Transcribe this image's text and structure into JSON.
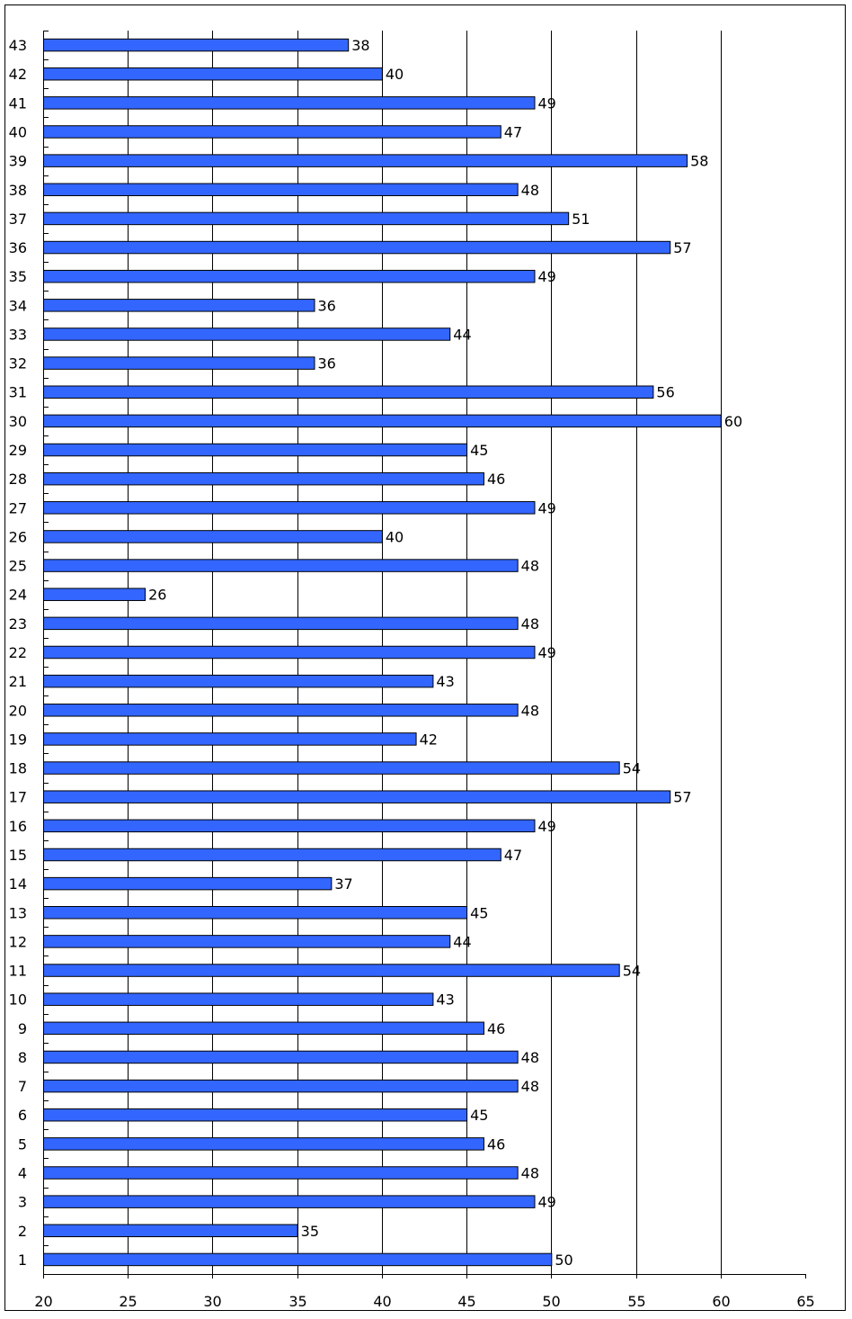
{
  "chart_data": {
    "type": "bar",
    "orientation": "horizontal",
    "title": "",
    "xlabel": "",
    "ylabel": "",
    "xlim": [
      20,
      65
    ],
    "x_ticks": [
      20,
      25,
      30,
      35,
      40,
      45,
      50,
      55,
      60,
      65
    ],
    "grid": "vertical lines at each x tick",
    "legend": "none",
    "bar_color": "#3366ff",
    "bar_border": "#000000",
    "categories": [
      "1",
      "2",
      "3",
      "4",
      "5",
      "6",
      "7",
      "8",
      "9",
      "10",
      "11",
      "12",
      "13",
      "14",
      "15",
      "16",
      "17",
      "18",
      "19",
      "20",
      "21",
      "22",
      "23",
      "24",
      "25",
      "26",
      "27",
      "28",
      "29",
      "30",
      "31",
      "32",
      "33",
      "34",
      "35",
      "36",
      "37",
      "38",
      "39",
      "40",
      "41",
      "42",
      "43"
    ],
    "values": [
      50,
      35,
      49,
      48,
      46,
      45,
      48,
      48,
      46,
      43,
      54,
      44,
      45,
      37,
      47,
      49,
      57,
      54,
      42,
      48,
      43,
      49,
      48,
      26,
      48,
      40,
      49,
      46,
      45,
      60,
      56,
      36,
      44,
      36,
      49,
      57,
      51,
      48,
      58,
      47,
      49,
      40,
      38
    ]
  }
}
